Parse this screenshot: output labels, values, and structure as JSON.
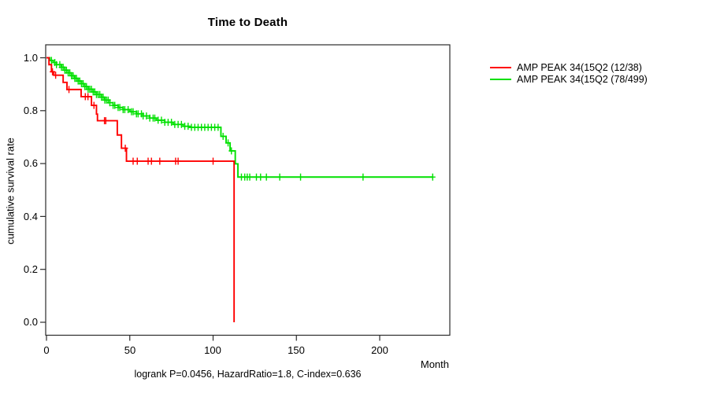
{
  "chart_data": {
    "type": "line",
    "subtype": "kaplan-meier-step",
    "title": "Time to Death",
    "xlabel": "Month",
    "ylabel": "cumulative survival rate",
    "footnote": "logrank P=0.0456, HazardRatio=1.8, C-index=0.636",
    "xlim": [
      0,
      242
    ],
    "ylim": [
      0,
      1.0
    ],
    "grid": false,
    "legend_position": "right-outside-top",
    "xticks": [
      0,
      50,
      100,
      150,
      200
    ],
    "xtick_labels": [
      "0",
      "50",
      "100",
      "150",
      "200"
    ],
    "yticks": [
      1.0,
      0.8,
      0.6,
      0.4,
      0.2,
      0.0
    ],
    "ytick_labels": [
      "1.0",
      "0.8",
      "0.6",
      "0.4",
      "0.2",
      "0.0"
    ],
    "colors": {
      "red_series": "#ff0000",
      "green_series": "#00e000",
      "axis": "#2b2b2b"
    },
    "legend": [
      {
        "label": "AMP PEAK 34(15Q2 (12/38)",
        "color": "#ff0000"
      },
      {
        "label": "AMP PEAK 34(15Q2 (78/499)",
        "color": "#00e000"
      }
    ],
    "series": [
      {
        "name": "AMP PEAK 34(15Q2 (78/499)",
        "color": "#00e000",
        "steps": [
          [
            2,
            0.99
          ],
          [
            4,
            0.982
          ],
          [
            6,
            0.974
          ],
          [
            9,
            0.964
          ],
          [
            11,
            0.953
          ],
          [
            13,
            0.943
          ],
          [
            15,
            0.932
          ],
          [
            17,
            0.922
          ],
          [
            19,
            0.912
          ],
          [
            21,
            0.902
          ],
          [
            23,
            0.891
          ],
          [
            25,
            0.881
          ],
          [
            28,
            0.871
          ],
          [
            30,
            0.861
          ],
          [
            33,
            0.851
          ],
          [
            35,
            0.84
          ],
          [
            38,
            0.83
          ],
          [
            40,
            0.82
          ],
          [
            43,
            0.812
          ],
          [
            46,
            0.804
          ],
          [
            50,
            0.796
          ],
          [
            54,
            0.788
          ],
          [
            58,
            0.78
          ],
          [
            62,
            0.772
          ],
          [
            66,
            0.764
          ],
          [
            71,
            0.756
          ],
          [
            76,
            0.748
          ],
          [
            82,
            0.741
          ],
          [
            86,
            0.737
          ],
          [
            104.7,
            0.703
          ],
          [
            107.8,
            0.678
          ],
          [
            110.2,
            0.648
          ],
          [
            113.3,
            0.599
          ],
          [
            114.9,
            0.549
          ],
          [
            231.8,
            0.549
          ]
        ],
        "censors": [
          3,
          5,
          6,
          8,
          9,
          10,
          11,
          12,
          13,
          14,
          15,
          16,
          17,
          18,
          19,
          20,
          21,
          22,
          23,
          24,
          25,
          26,
          27,
          28,
          29,
          30,
          31,
          32,
          33,
          34,
          35,
          36,
          37,
          38,
          40,
          41,
          43,
          44,
          46,
          47,
          49,
          51,
          52,
          54,
          55,
          57,
          58,
          60,
          62,
          64,
          65,
          67,
          69,
          71,
          73,
          75,
          77,
          79,
          81,
          83,
          85,
          87,
          89,
          91,
          93,
          95,
          97,
          99,
          101,
          103,
          106,
          109,
          111,
          117,
          119,
          120.5,
          122,
          126,
          128.5,
          132,
          140,
          152.5,
          190,
          231.8
        ]
      },
      {
        "name": "AMP PEAK 34(15Q2 (12/38)",
        "color": "#ff0000",
        "steps": [
          [
            1.5,
            0.974
          ],
          [
            3,
            0.947
          ],
          [
            4.4,
            0.934
          ],
          [
            10,
            0.907
          ],
          [
            12.3,
            0.88
          ],
          [
            20.8,
            0.853
          ],
          [
            27,
            0.82
          ],
          [
            30,
            0.787
          ],
          [
            30.6,
            0.762
          ],
          [
            42.5,
            0.708
          ],
          [
            45,
            0.658
          ],
          [
            48,
            0.609
          ],
          [
            112.6,
            0.0
          ]
        ],
        "censors": [
          3.6,
          5.5,
          13.5,
          23.3,
          24.9,
          28.5,
          34.8,
          35.6,
          47.3,
          52,
          54.5,
          61,
          63,
          68,
          77.5,
          79,
          100
        ]
      }
    ]
  }
}
